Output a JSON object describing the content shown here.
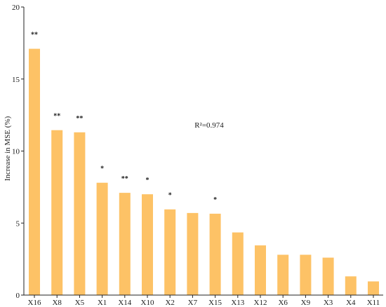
{
  "colors": {
    "bar": "#FDC266",
    "axis": "#222222",
    "text": "#1a1a1a"
  },
  "annotation": {
    "text": "R²=0.974"
  },
  "chart_data": {
    "type": "bar",
    "title": "",
    "xlabel": "",
    "ylabel": "Increase in MSE (%)",
    "ylim": [
      0,
      20
    ],
    "yticks": [
      0,
      5,
      10,
      15,
      20
    ],
    "grid": false,
    "categories": [
      "X16",
      "X8",
      "X5",
      "X1",
      "X14",
      "X10",
      "X2",
      "X7",
      "X15",
      "X13",
      "X12",
      "X6",
      "X9",
      "X3",
      "X4",
      "X11"
    ],
    "values": [
      17.1,
      11.45,
      11.3,
      7.8,
      7.1,
      7.0,
      5.95,
      5.7,
      5.65,
      4.35,
      3.45,
      2.8,
      2.8,
      2.6,
      1.3,
      0.95
    ],
    "significance": [
      "**",
      "**",
      "**",
      "*",
      "**",
      "*",
      "*",
      "",
      "*",
      "",
      "",
      "",
      "",
      "",
      "",
      ""
    ]
  }
}
